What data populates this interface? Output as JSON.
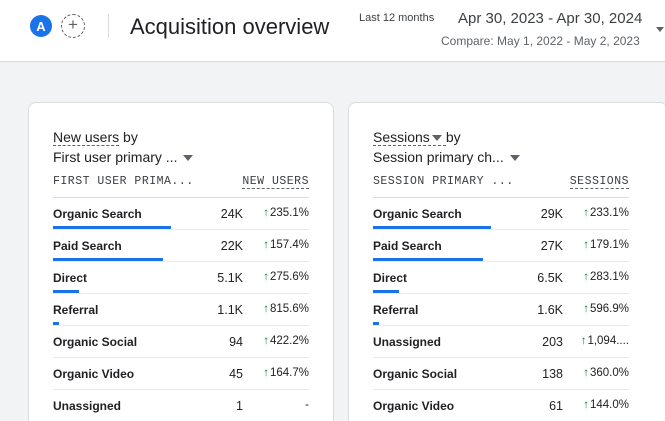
{
  "header": {
    "avatar_letter": "A",
    "add_label": "+",
    "title": "Acquisition overview",
    "date_label": "Last 12 months",
    "date_range": "Apr 30, 2023 - Apr 30, 2024",
    "compare": "Compare: May 1, 2022 - May 2, 2023"
  },
  "cards": [
    {
      "metric_label": "New users",
      "by": "by",
      "dimension_select": "First user primary ...",
      "dim_header": "FIRST USER PRIMA...",
      "metric_header": "NEW USERS",
      "rows": [
        {
          "name": "Organic Search",
          "value": "24K",
          "arrow": "↑",
          "change": "235.1%",
          "share": 1.0
        },
        {
          "name": "Paid Search",
          "value": "22K",
          "arrow": "↑",
          "change": "157.4%",
          "share": 0.93
        },
        {
          "name": "Direct",
          "value": "5.1K",
          "arrow": "↑",
          "change": "275.6%",
          "share": 0.22
        },
        {
          "name": "Referral",
          "value": "1.1K",
          "arrow": "↑",
          "change": "815.6%",
          "share": 0.05
        },
        {
          "name": "Organic Social",
          "value": "94",
          "arrow": "↑",
          "change": "422.2%",
          "share": 0.0
        },
        {
          "name": "Organic Video",
          "value": "45",
          "arrow": "↑",
          "change": "164.7%",
          "share": 0.0
        },
        {
          "name": "Unassigned",
          "value": "1",
          "arrow": "",
          "change": "-",
          "share": 0.0
        }
      ]
    },
    {
      "metric_label": "Sessions",
      "by": "by",
      "dimension_select": "Session primary ch...",
      "dim_header": "SESSION PRIMARY ...",
      "metric_header": "SESSIONS",
      "rows": [
        {
          "name": "Organic Search",
          "value": "29K",
          "arrow": "↑",
          "change": "233.1%",
          "share": 1.0
        },
        {
          "name": "Paid Search",
          "value": "27K",
          "arrow": "↑",
          "change": "179.1%",
          "share": 0.93
        },
        {
          "name": "Direct",
          "value": "6.5K",
          "arrow": "↑",
          "change": "283.1%",
          "share": 0.22
        },
        {
          "name": "Referral",
          "value": "1.6K",
          "arrow": "↑",
          "change": "596.9%",
          "share": 0.05
        },
        {
          "name": "Unassigned",
          "value": "203",
          "arrow": "↑",
          "change": "1,094....",
          "share": 0.0
        },
        {
          "name": "Organic Social",
          "value": "138",
          "arrow": "↑",
          "change": "360.0%",
          "share": 0.0
        },
        {
          "name": "Organic Video",
          "value": "61",
          "arrow": "↑",
          "change": "144.0%",
          "share": 0.0
        }
      ]
    }
  ]
}
